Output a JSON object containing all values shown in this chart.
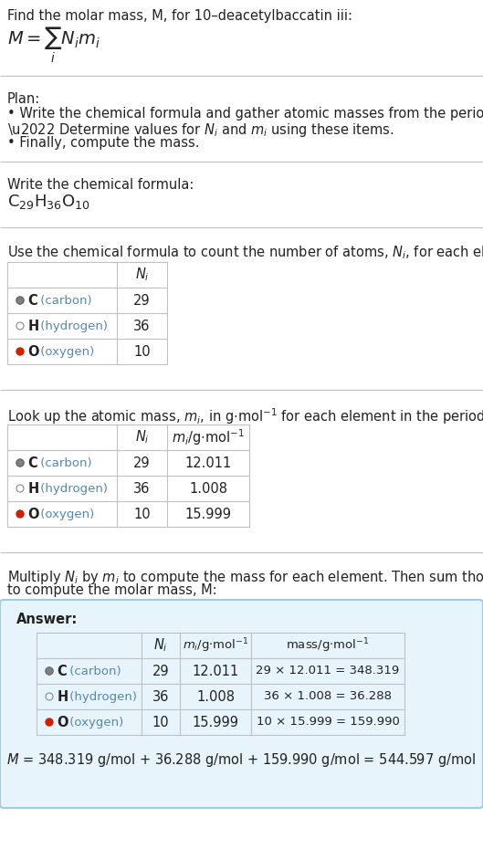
{
  "title_line1": "Find the molar mass, M, for 10–deacetylbaccatin iii:",
  "bg_color": "#ffffff",
  "answer_box_color": "#e8f4fb",
  "answer_box_edge": "#a0cce0",
  "element_colors": {
    "C": "#808080",
    "H": "#ffffff",
    "O": "#cc2200"
  },
  "element_filled": {
    "C": true,
    "H": false,
    "O": true
  },
  "elements": [
    "C (carbon)",
    "H (hydrogen)",
    "O (oxygen)"
  ],
  "elements_bold": [
    "C",
    "H",
    "O"
  ],
  "Ni": [
    29,
    36,
    10
  ],
  "mi": [
    12.011,
    1.008,
    15.999
  ],
  "mass_labels": [
    "29 × 12.011 = 348.319",
    "36 × 1.008 = 36.288",
    "10 × 15.999 = 159.990"
  ],
  "text_color": "#222222",
  "blue_color": "#5588aa"
}
